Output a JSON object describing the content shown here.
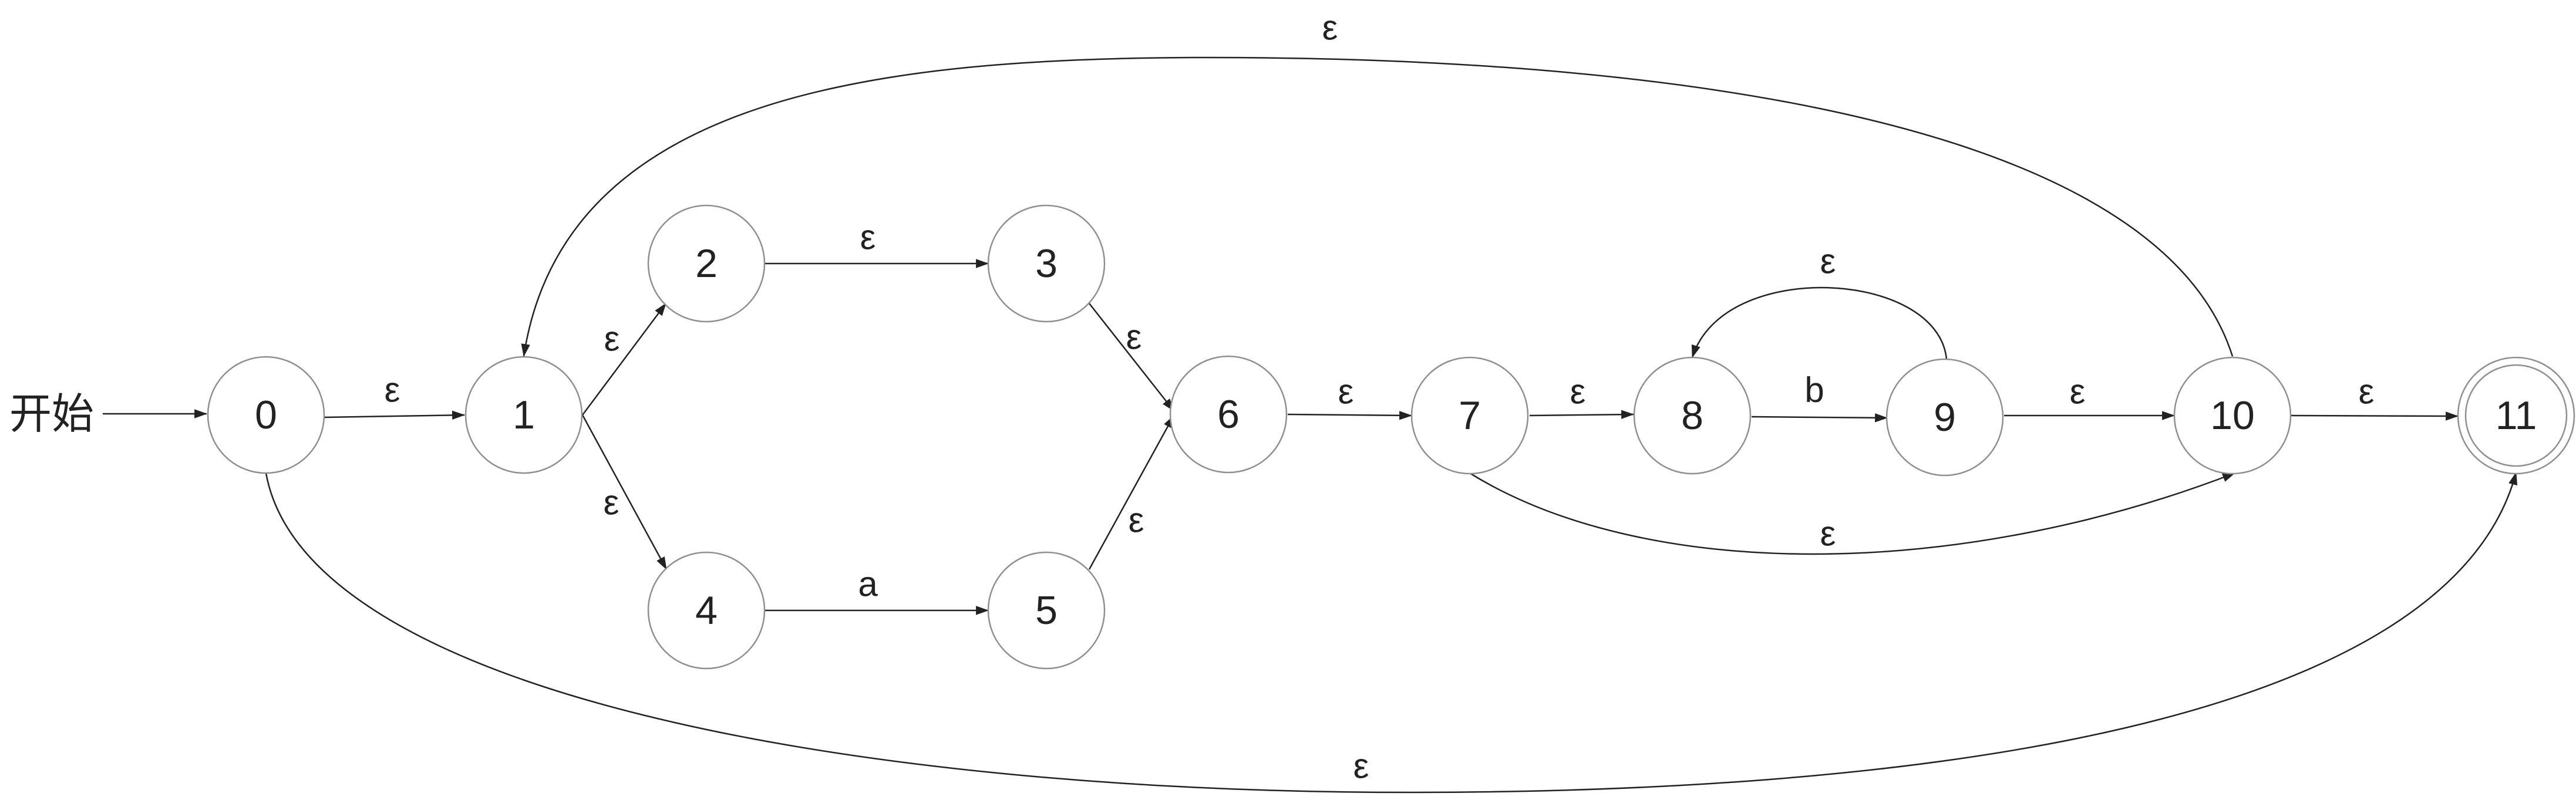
{
  "diagram": {
    "start_label": "开始",
    "edge_color": "#222222",
    "node_stroke_color": "#8f8f8f",
    "states": [
      {
        "id": "0",
        "label": "0",
        "accepting": false
      },
      {
        "id": "1",
        "label": "1",
        "accepting": false
      },
      {
        "id": "2",
        "label": "2",
        "accepting": false
      },
      {
        "id": "3",
        "label": "3",
        "accepting": false
      },
      {
        "id": "4",
        "label": "4",
        "accepting": false
      },
      {
        "id": "5",
        "label": "5",
        "accepting": false
      },
      {
        "id": "6",
        "label": "6",
        "accepting": false
      },
      {
        "id": "7",
        "label": "7",
        "accepting": false
      },
      {
        "id": "8",
        "label": "8",
        "accepting": false
      },
      {
        "id": "9",
        "label": "9",
        "accepting": false
      },
      {
        "id": "10",
        "label": "10",
        "accepting": false
      },
      {
        "id": "11",
        "label": "11",
        "accepting": true
      }
    ],
    "transitions": [
      {
        "from": "start",
        "to": "0",
        "label": ""
      },
      {
        "from": "0",
        "to": "1",
        "label": "ε"
      },
      {
        "from": "1",
        "to": "2",
        "label": "ε"
      },
      {
        "from": "1",
        "to": "4",
        "label": "ε"
      },
      {
        "from": "2",
        "to": "3",
        "label": "ε"
      },
      {
        "from": "4",
        "to": "5",
        "label": "a"
      },
      {
        "from": "3",
        "to": "6",
        "label": "ε"
      },
      {
        "from": "5",
        "to": "6",
        "label": "ε"
      },
      {
        "from": "6",
        "to": "7",
        "label": "ε"
      },
      {
        "from": "7",
        "to": "8",
        "label": "ε"
      },
      {
        "from": "8",
        "to": "9",
        "label": "b"
      },
      {
        "from": "9",
        "to": "8",
        "label": "ε"
      },
      {
        "from": "9",
        "to": "10",
        "label": "ε"
      },
      {
        "from": "7",
        "to": "10",
        "label": "ε"
      },
      {
        "from": "10",
        "to": "1",
        "label": "ε"
      },
      {
        "from": "10",
        "to": "11",
        "label": "ε"
      },
      {
        "from": "0",
        "to": "11",
        "label": "ε"
      }
    ]
  }
}
